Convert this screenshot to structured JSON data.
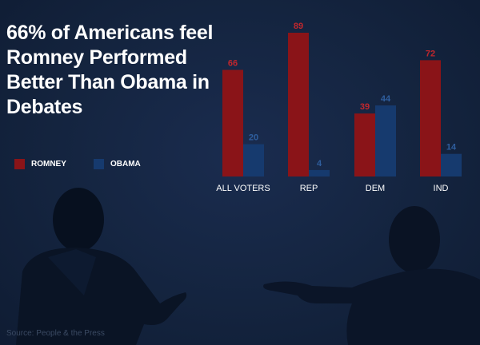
{
  "title": "66% of Americans feel Romney Performed Better Than Obama in Debates",
  "legend": [
    {
      "label": "ROMNEY",
      "color": "#8a1418"
    },
    {
      "label": "OBAMA",
      "color": "#163a6e"
    }
  ],
  "source": "Source: People & the Press",
  "chart_data": {
    "type": "bar",
    "title": "66% of Americans feel Romney Performed Better Than Obama in Debates",
    "categories": [
      "ALL VOTERS",
      "REP",
      "DEM",
      "IND"
    ],
    "series": [
      {
        "name": "ROMNEY",
        "color": "#8a1418",
        "label_color": "#c0272d",
        "values": [
          66,
          89,
          39,
          72
        ]
      },
      {
        "name": "OBAMA",
        "color": "#163a6e",
        "label_color": "#2f5e9e",
        "values": [
          20,
          4,
          44,
          14
        ]
      }
    ],
    "ylim": [
      0,
      89
    ],
    "grid": false,
    "legend_position": "left, below title"
  }
}
